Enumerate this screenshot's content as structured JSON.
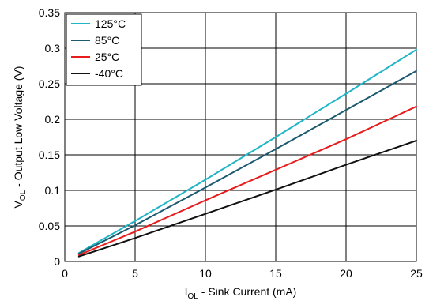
{
  "chart_data": {
    "type": "line",
    "title": "",
    "xlabel_main": "I",
    "xlabel_sub": "OL",
    "xlabel_rest": " - Sink Current (mA)",
    "ylabel_main": "V",
    "ylabel_sub": "OL",
    "ylabel_rest": " - Output Low Voltage (V)",
    "xlim": [
      0,
      25
    ],
    "ylim": [
      0,
      0.35
    ],
    "x_ticks": [
      0,
      5,
      10,
      15,
      20,
      25
    ],
    "x_tick_labels": [
      "0",
      "5",
      "10",
      "15",
      "20",
      "25"
    ],
    "y_ticks": [
      0,
      0.05,
      0.1,
      0.15,
      0.2,
      0.25,
      0.3,
      0.35
    ],
    "y_tick_labels": [
      "0",
      "0.05",
      "0.1",
      "0.15",
      "0.2",
      "0.25",
      "0.3",
      "0.35"
    ],
    "grid": true,
    "legend_position": "top-left",
    "series": [
      {
        "name": "125°C",
        "color": "#1fb5c6",
        "x": [
          1,
          5,
          10,
          15,
          20,
          25
        ],
        "y": [
          0.012,
          0.057,
          0.115,
          0.175,
          0.236,
          0.298
        ]
      },
      {
        "name": "85°C",
        "color": "#1c5a6f",
        "x": [
          1,
          5,
          10,
          15,
          20,
          25
        ],
        "y": [
          0.011,
          0.051,
          0.104,
          0.158,
          0.213,
          0.268
        ]
      },
      {
        "name": "25°C",
        "color": "#e81c1c",
        "x": [
          1,
          5,
          10,
          15,
          20,
          25
        ],
        "y": [
          0.009,
          0.042,
          0.086,
          0.129,
          0.172,
          0.218
        ]
      },
      {
        "name": "-40°C",
        "color": "#111111",
        "x": [
          1,
          5,
          10,
          15,
          20,
          25
        ],
        "y": [
          0.007,
          0.033,
          0.067,
          0.101,
          0.136,
          0.17
        ]
      }
    ]
  }
}
